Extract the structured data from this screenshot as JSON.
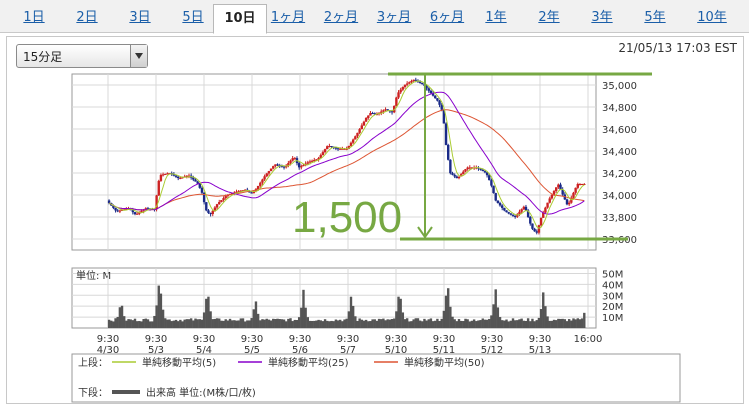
{
  "tabs": [
    {
      "label": "1日"
    },
    {
      "label": "2日"
    },
    {
      "label": "3日"
    },
    {
      "label": "5日"
    },
    {
      "label": "10日",
      "active": true
    },
    {
      "label": "1ヶ月"
    },
    {
      "label": "2ヶ月"
    },
    {
      "label": "3ヶ月"
    },
    {
      "label": "6ヶ月"
    },
    {
      "label": "1年"
    },
    {
      "label": "2年"
    },
    {
      "label": "3年"
    },
    {
      "label": "5年"
    },
    {
      "label": "10年"
    }
  ],
  "period_select": {
    "value": "15分足"
  },
  "timestamp": "21/05/13 17:03 EST",
  "colors": {
    "candle_up": "#cc2222",
    "candle_down": "#1a2a88",
    "ma5": "#aacc33",
    "ma25": "#8800cc",
    "ma50": "#dd5533",
    "volume": "#555555",
    "annotation": "#77a843",
    "grid": "#d8d8d8"
  },
  "legend": {
    "upper_label": "上段：",
    "lower_label": "下段：",
    "items": [
      {
        "label": "単純移動平均(5)",
        "color": "#aacc33"
      },
      {
        "label": "単純移動平均(25)",
        "color": "#8800cc"
      },
      {
        "label": "単純移動平均(50)",
        "color": "#dd5533"
      }
    ],
    "volume_label": "出来高 単位:(M株/口/枚)"
  },
  "annotation": {
    "text": "1,500",
    "high": 35100,
    "low": 33600
  },
  "chart_data": {
    "type": "line",
    "title": "",
    "x_ticks": [
      {
        "time": "9:30",
        "date": "4/30"
      },
      {
        "time": "9:30",
        "date": "5/3"
      },
      {
        "time": "9:30",
        "date": "5/4"
      },
      {
        "time": "9:30",
        "date": "5/5"
      },
      {
        "time": "9:30",
        "date": "5/6"
      },
      {
        "time": "9:30",
        "date": "5/7"
      },
      {
        "time": "9:30",
        "date": "5/10"
      },
      {
        "time": "9:30",
        "date": "5/11"
      },
      {
        "time": "9:30",
        "date": "5/12"
      },
      {
        "time": "9:30",
        "date": "5/13"
      },
      {
        "time": "16:00",
        "date": ""
      }
    ],
    "price_axis": {
      "ylim": [
        33500,
        35100
      ],
      "ticks": [
        35000,
        34800,
        34600,
        34400,
        34200,
        34000,
        33800,
        33600
      ],
      "tick_labels": [
        "35,000",
        "34,800",
        "34,600",
        "34,400",
        "34,200",
        "34,000",
        "33,800",
        "33,600"
      ]
    },
    "volume_axis": {
      "unit_label": "単位: M",
      "ylim": [
        0,
        55
      ],
      "ticks": [
        50,
        40,
        30,
        20,
        10
      ],
      "tick_labels": [
        "50M",
        "40M",
        "30M",
        "20M",
        "10M"
      ]
    },
    "price_series": {
      "name": "",
      "x": [
        0,
        0.2,
        0.45,
        0.6,
        0.8,
        1.0,
        1.05,
        1.1,
        1.3,
        1.5,
        1.7,
        1.9,
        2.0,
        2.05,
        2.15,
        2.3,
        2.5,
        2.7,
        2.9,
        3.0,
        3.1,
        3.3,
        3.5,
        3.7,
        3.9,
        4.0,
        4.2,
        4.4,
        4.6,
        4.8,
        5.0,
        5.2,
        5.4,
        5.5,
        5.6,
        5.8,
        5.95,
        6.05,
        6.2,
        6.4,
        6.6,
        6.8,
        6.9,
        7.0,
        7.05,
        7.15,
        7.3,
        7.5,
        7.7,
        7.9,
        8.0,
        8.1,
        8.3,
        8.5,
        8.7,
        8.85,
        8.95,
        9.05,
        9.2,
        9.4,
        9.6,
        9.8,
        9.9
      ],
      "values": [
        33950,
        33850,
        33880,
        33820,
        33880,
        33870,
        34050,
        34180,
        34200,
        34150,
        34180,
        34100,
        34000,
        33870,
        33820,
        33920,
        34000,
        34030,
        34050,
        34010,
        34050,
        34180,
        34280,
        34250,
        34350,
        34250,
        34300,
        34330,
        34450,
        34420,
        34420,
        34550,
        34700,
        34750,
        34730,
        34780,
        34750,
        34920,
        35000,
        35050,
        35000,
        34900,
        34850,
        34750,
        34500,
        34200,
        34150,
        34250,
        34250,
        34200,
        34100,
        33950,
        33850,
        33800,
        33900,
        33700,
        33650,
        33800,
        33950,
        34100,
        33900,
        34100,
        34100
      ]
    },
    "volume_series": {
      "name": "",
      "spike_x": [
        0.25,
        1.05,
        2.05,
        3.05,
        4.05,
        5.05,
        6.05,
        7.05,
        8.05,
        9.05,
        9.95
      ],
      "spike_values": [
        27,
        48,
        38,
        28,
        35,
        33,
        38,
        45,
        38,
        35,
        28
      ],
      "baseline": 6
    }
  }
}
